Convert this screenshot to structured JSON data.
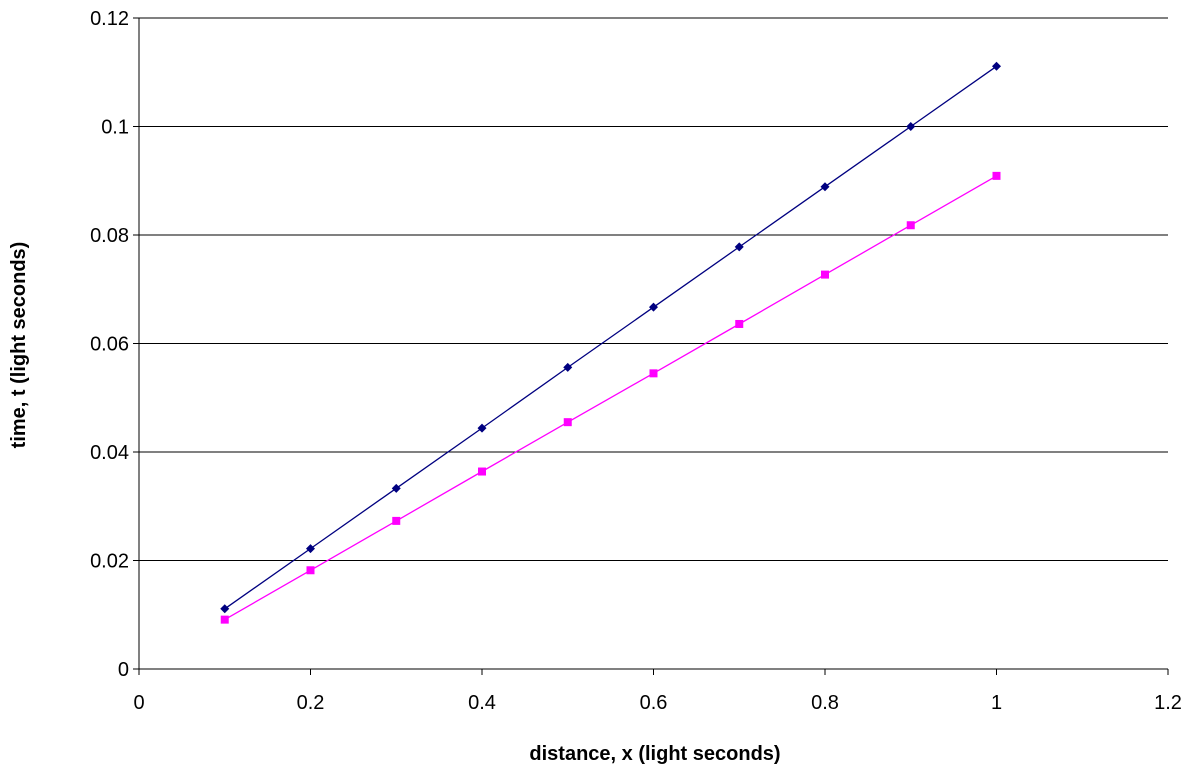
{
  "chart_data": {
    "type": "line",
    "title": "",
    "xlabel": "distance, x (light seconds)",
    "ylabel": "time, t (light seconds)",
    "xlim": [
      0,
      1.2
    ],
    "ylim": [
      0,
      0.12
    ],
    "x_ticks": [
      0,
      0.2,
      0.4,
      0.6,
      0.8,
      1,
      1.2
    ],
    "x_tick_labels": [
      "0",
      "0.2",
      "0.4",
      "0.6",
      "0.8",
      "1",
      "1.2"
    ],
    "y_ticks": [
      0,
      0.02,
      0.04,
      0.06,
      0.08,
      0.1,
      0.12
    ],
    "y_tick_labels": [
      "0",
      "0.02",
      "0.04",
      "0.06",
      "0.08",
      "0.1",
      "0.12"
    ],
    "grid": "horizontal",
    "legend": "none",
    "x": [
      0.1,
      0.2,
      0.3,
      0.4,
      0.5,
      0.6,
      0.7,
      0.8,
      0.9,
      1.0
    ],
    "series": [
      {
        "color": "#000080",
        "marker": "diamond",
        "values": [
          0.0111,
          0.0222,
          0.0333,
          0.0444,
          0.0556,
          0.0667,
          0.0778,
          0.0889,
          0.1,
          0.1111
        ]
      },
      {
        "color": "#ff00ff",
        "marker": "square",
        "values": [
          0.0091,
          0.0182,
          0.0273,
          0.0364,
          0.0455,
          0.0545,
          0.0636,
          0.0727,
          0.0818,
          0.0909
        ]
      }
    ]
  }
}
